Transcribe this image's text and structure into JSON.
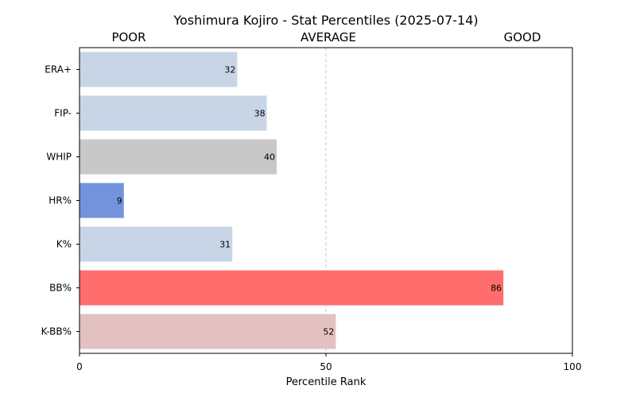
{
  "chart_data": {
    "type": "bar",
    "orientation": "horizontal",
    "title": "Yoshimura Kojiro - Stat Percentiles (2025-07-14)",
    "band_labels": [
      "POOR",
      "AVERAGE",
      "GOOD"
    ],
    "xlabel": "Percentile Rank",
    "ylabel": "",
    "xlim": [
      0,
      100
    ],
    "xticks": [
      0,
      50,
      100
    ],
    "reference_line": 50,
    "grid": false,
    "categories": [
      "ERA+",
      "FIP-",
      "WHIP",
      "HR%",
      "K%",
      "BB%",
      "K-BB%"
    ],
    "values": [
      32,
      38,
      40,
      9,
      31,
      86,
      52
    ],
    "colors": [
      "#c8d5e6",
      "#c8d5e6",
      "#c8c8c8",
      "#7394dc",
      "#c8d5e6",
      "#ff6d6d",
      "#e4c1c1"
    ]
  }
}
